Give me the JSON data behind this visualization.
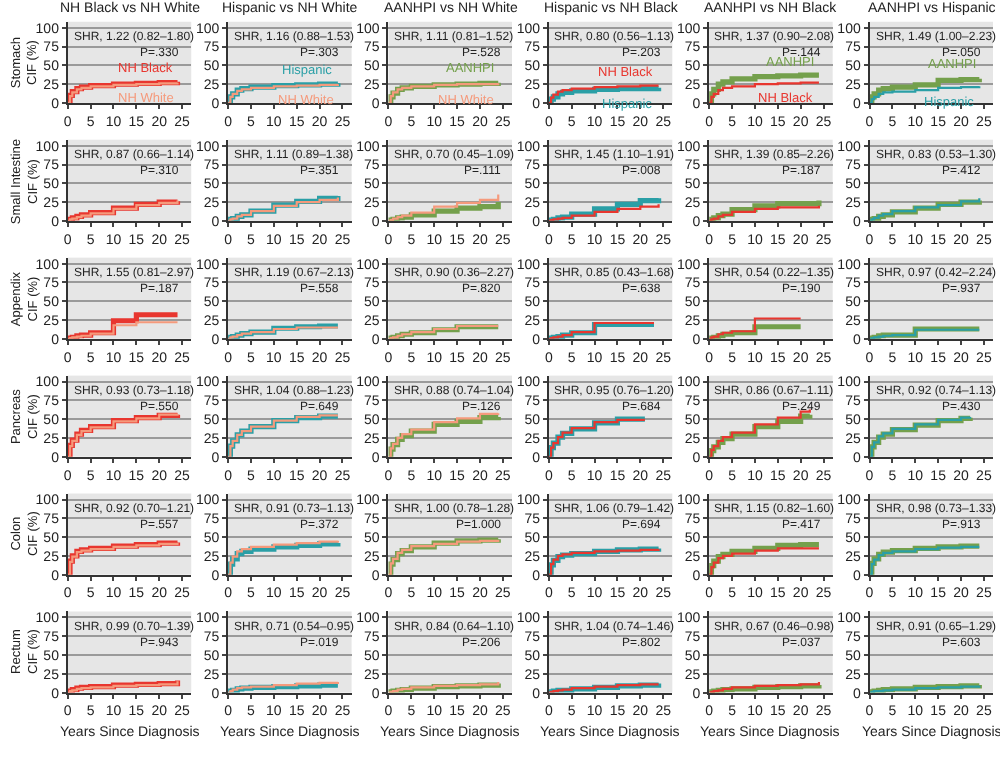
{
  "chart_data": [
    {
      "type": "step",
      "title": "NH Black vs NH White",
      "ylabel": "Stomach\nCIF (%)",
      "x": [
        0,
        0.5,
        1,
        2,
        3,
        5,
        10,
        15,
        20,
        24
      ],
      "xlim": [
        0,
        27
      ],
      "xticks": [
        0,
        5,
        10,
        15,
        20,
        25
      ],
      "ylim": [
        0,
        108
      ],
      "yticks": [
        0,
        25,
        50,
        75,
        100
      ],
      "grid": "y",
      "annotations": [
        "SHR, 1.22 (0.82–1.80)",
        "P=.330"
      ],
      "series": [
        {
          "name": "NH Black",
          "color": "#e8362f",
          "values": [
            0,
            10,
            15,
            19,
            21,
            23,
            25,
            26,
            27,
            28
          ]
        },
        {
          "name": "NH White",
          "color": "#f59a7c",
          "values": [
            0,
            9,
            14,
            18,
            20,
            22,
            24,
            25,
            26,
            27
          ]
        }
      ]
    },
    {
      "type": "step",
      "title": "Hispanic vs NH White",
      "x": [
        0,
        0.5,
        1,
        2,
        3,
        5,
        10,
        15,
        20,
        24
      ],
      "xlim": [
        0,
        27
      ],
      "xticks": [
        0,
        5,
        10,
        15,
        20,
        25
      ],
      "ylim": [
        0,
        108
      ],
      "yticks": [
        0,
        25,
        50,
        75,
        100
      ],
      "grid": "y",
      "annotations": [
        "SHR, 1.16 (0.88–1.53)",
        "P=.303"
      ],
      "series": [
        {
          "name": "Hispanic",
          "color": "#2a9fa6",
          "values": [
            0,
            8,
            12,
            17,
            19,
            21,
            23,
            24,
            25,
            26
          ]
        },
        {
          "name": "NH White",
          "color": "#f59a7c",
          "values": [
            0,
            8,
            12,
            16,
            18,
            20,
            22,
            23,
            24,
            25
          ]
        }
      ]
    },
    {
      "type": "step",
      "title": "AANHPI vs NH White",
      "x": [
        0,
        0.5,
        1,
        2,
        3,
        5,
        10,
        15,
        20,
        24
      ],
      "xlim": [
        0,
        27
      ],
      "xticks": [
        0,
        5,
        10,
        15,
        20,
        25
      ],
      "ylim": [
        0,
        108
      ],
      "yticks": [
        0,
        25,
        50,
        75,
        100
      ],
      "grid": "y",
      "annotations": [
        "SHR, 1.11 (0.81–1.52)",
        "P=.528"
      ],
      "series": [
        {
          "name": "AANHPI",
          "color": "#74a04c",
          "values": [
            0,
            8,
            13,
            18,
            20,
            22,
            24,
            25,
            26,
            27
          ]
        },
        {
          "name": "NH White",
          "color": "#f59a7c",
          "values": [
            0,
            9,
            14,
            18,
            20,
            22,
            24,
            25,
            25,
            26
          ]
        }
      ]
    },
    {
      "type": "step",
      "title": "Hispanic vs NH Black",
      "x": [
        0,
        0.5,
        1,
        2,
        3,
        5,
        10,
        15,
        20,
        24
      ],
      "xlim": [
        0,
        27
      ],
      "xticks": [
        0,
        5,
        10,
        15,
        20,
        25
      ],
      "ylim": [
        0,
        108
      ],
      "yticks": [
        0,
        25,
        50,
        75,
        100
      ],
      "grid": "y",
      "annotations": [
        "SHR, 0.80 (0.56–1.13)",
        "P=.203"
      ],
      "series": [
        {
          "name": "Hispanic",
          "color": "#2a9fa6",
          "values": [
            0,
            5,
            8,
            12,
            14,
            16,
            18,
            19,
            19,
            20
          ]
        },
        {
          "name": "NH Black",
          "color": "#e8362f",
          "values": [
            0,
            7,
            11,
            15,
            17,
            19,
            21,
            22,
            23,
            23
          ]
        }
      ]
    },
    {
      "type": "step",
      "title": "AANHPI vs NH Black",
      "x": [
        0,
        0.5,
        1,
        2,
        3,
        5,
        10,
        15,
        20,
        24
      ],
      "xlim": [
        0,
        27
      ],
      "xticks": [
        0,
        5,
        10,
        15,
        20,
        25
      ],
      "ylim": [
        0,
        108
      ],
      "yticks": [
        0,
        25,
        50,
        75,
        100
      ],
      "grid": "y",
      "annotations": [
        "SHR, 1.37 (0.90–2.08)",
        "P=.144"
      ],
      "series": [
        {
          "name": "AANHPI",
          "color": "#74a04c",
          "values": [
            0,
            12,
            18,
            25,
            28,
            32,
            35,
            36,
            37,
            37
          ]
        },
        {
          "name": "NH Black",
          "color": "#e8362f",
          "values": [
            0,
            8,
            12,
            17,
            20,
            22,
            25,
            26,
            27,
            27
          ]
        }
      ]
    },
    {
      "type": "step",
      "title": "AANHPI vs Hispanic",
      "x": [
        0,
        0.5,
        1,
        2,
        3,
        5,
        10,
        15,
        20,
        24
      ],
      "xlim": [
        0,
        27
      ],
      "xticks": [
        0,
        5,
        10,
        15,
        20,
        25
      ],
      "ylim": [
        0,
        108
      ],
      "yticks": [
        0,
        25,
        50,
        75,
        100
      ],
      "grid": "y",
      "annotations": [
        "SHR, 1.49 (1.00–2.23)",
        "P=.050"
      ],
      "series": [
        {
          "name": "AANHPI",
          "color": "#74a04c",
          "values": [
            0,
            8,
            12,
            17,
            19,
            21,
            24,
            30,
            31,
            32
          ]
        },
        {
          "name": "Hispanic",
          "color": "#2a9fa6",
          "values": [
            0,
            5,
            8,
            12,
            14,
            15,
            17,
            20,
            21,
            22
          ]
        }
      ]
    },
    {
      "type": "step",
      "ylabel": "Small Intestine\nCIF (%)",
      "x": [
        0,
        0.5,
        1,
        2,
        3,
        5,
        10,
        15,
        20,
        24
      ],
      "xlim": [
        0,
        27
      ],
      "xticks": [
        0,
        5,
        10,
        15,
        20,
        25
      ],
      "ylim": [
        0,
        108
      ],
      "yticks": [
        0,
        25,
        50,
        75,
        100
      ],
      "grid": "y",
      "annotations": [
        "SHR, 0.87 (0.66–1.14)",
        "P=.310"
      ],
      "series": [
        {
          "color": "#e8362f",
          "values": [
            0,
            2,
            4,
            6,
            8,
            11,
            17,
            22,
            25,
            26
          ]
        },
        {
          "color": "#f59a7c",
          "values": [
            0,
            2,
            3,
            5,
            7,
            10,
            16,
            21,
            24,
            27
          ]
        }
      ]
    },
    {
      "type": "step",
      "x": [
        0,
        0.5,
        1,
        2,
        3,
        5,
        10,
        15,
        20,
        24
      ],
      "xlim": [
        0,
        27
      ],
      "xticks": [
        0,
        5,
        10,
        15,
        20,
        25
      ],
      "ylim": [
        0,
        108
      ],
      "yticks": [
        0,
        25,
        50,
        75,
        100
      ],
      "grid": "y",
      "annotations": [
        "SHR, 1.11 (0.89–1.38)",
        "P=.351"
      ],
      "series": [
        {
          "color": "#2a9fa6",
          "values": [
            0,
            2,
            3,
            6,
            8,
            13,
            21,
            26,
            30,
            33
          ]
        },
        {
          "color": "#f59a7c",
          "values": [
            0,
            2,
            3,
            6,
            8,
            13,
            20,
            25,
            28,
            31
          ]
        }
      ]
    },
    {
      "type": "step",
      "x": [
        0,
        0.5,
        1,
        2,
        3,
        5,
        10,
        15,
        20,
        24
      ],
      "xlim": [
        0,
        27
      ],
      "xticks": [
        0,
        5,
        10,
        15,
        20,
        25
      ],
      "ylim": [
        0,
        108
      ],
      "yticks": [
        0,
        25,
        50,
        75,
        100
      ],
      "grid": "y",
      "annotations": [
        "SHR, 0.70 (0.45–1.09)",
        "P=.111"
      ],
      "series": [
        {
          "color": "#74a04c",
          "values": [
            0,
            1,
            2,
            4,
            5,
            8,
            13,
            17,
            19,
            25
          ]
        },
        {
          "color": "#f59a7c",
          "values": [
            0,
            1,
            3,
            5,
            7,
            11,
            19,
            24,
            28,
            35
          ]
        }
      ]
    },
    {
      "type": "step",
      "x": [
        0,
        0.5,
        1,
        2,
        3,
        5,
        10,
        15,
        20,
        24
      ],
      "xlim": [
        0,
        27
      ],
      "xticks": [
        0,
        5,
        10,
        15,
        20,
        25
      ],
      "ylim": [
        0,
        108
      ],
      "yticks": [
        0,
        25,
        50,
        75,
        100
      ],
      "grid": "y",
      "annotations": [
        "SHR, 1.45 (1.10–1.91)",
        "P=.008"
      ],
      "series": [
        {
          "color": "#2a9fa6",
          "values": [
            0,
            1,
            2,
            4,
            5,
            9,
            16,
            22,
            27,
            30
          ]
        },
        {
          "color": "#e8362f",
          "values": [
            0,
            1,
            2,
            3,
            4,
            7,
            12,
            16,
            19,
            22
          ]
        }
      ]
    },
    {
      "type": "step",
      "x": [
        0,
        0.5,
        1,
        2,
        3,
        5,
        10,
        15,
        20,
        24
      ],
      "xlim": [
        0,
        27
      ],
      "xticks": [
        0,
        5,
        10,
        15,
        20,
        25
      ],
      "ylim": [
        0,
        108
      ],
      "yticks": [
        0,
        25,
        50,
        75,
        100
      ],
      "grid": "y",
      "annotations": [
        "SHR, 1.39 (0.85–2.26)",
        "P=.187"
      ],
      "series": [
        {
          "color": "#74a04c",
          "values": [
            0,
            2,
            4,
            7,
            9,
            15,
            20,
            23,
            23,
            27
          ]
        },
        {
          "color": "#e8362f",
          "values": [
            0,
            2,
            3,
            6,
            8,
            12,
            16,
            18,
            18,
            20
          ]
        }
      ]
    },
    {
      "type": "step",
      "x": [
        0,
        0.5,
        1,
        2,
        3,
        5,
        10,
        15,
        20,
        24
      ],
      "xlim": [
        0,
        27
      ],
      "xticks": [
        0,
        5,
        10,
        15,
        20,
        25
      ],
      "ylim": [
        0,
        108
      ],
      "yticks": [
        0,
        25,
        50,
        75,
        100
      ],
      "grid": "y",
      "annotations": [
        "SHR, 0.83 (0.53–1.30)",
        "P=.412"
      ],
      "series": [
        {
          "color": "#74a04c",
          "values": [
            0,
            2,
            3,
            6,
            8,
            12,
            17,
            22,
            25,
            27
          ]
        },
        {
          "color": "#2a9fa6",
          "values": [
            0,
            2,
            4,
            7,
            9,
            13,
            18,
            21,
            26,
            30
          ]
        }
      ]
    },
    {
      "type": "step",
      "ylabel": "Appendix\nCIF (%)",
      "x": [
        0,
        0.5,
        1,
        2,
        3,
        5,
        10,
        15,
        20,
        24
      ],
      "xlim": [
        0,
        27
      ],
      "xticks": [
        0,
        5,
        10,
        15,
        20,
        25
      ],
      "ylim": [
        0,
        108
      ],
      "yticks": [
        0,
        25,
        50,
        75,
        100
      ],
      "grid": "y",
      "annotations": [
        "SHR, 1.55 (0.81–2.97)",
        "P=.187"
      ],
      "series": [
        {
          "color": "#e8362f",
          "values": [
            0,
            1,
            2,
            4,
            5,
            8,
            24,
            32,
            32,
            32
          ]
        },
        {
          "color": "#f59a7c",
          "values": [
            0,
            1,
            2,
            3,
            4,
            7,
            18,
            22,
            22,
            22
          ]
        }
      ]
    },
    {
      "type": "step",
      "x": [
        0,
        0.5,
        1,
        2,
        3,
        5,
        10,
        15,
        20,
        24
      ],
      "xlim": [
        0,
        27
      ],
      "xticks": [
        0,
        5,
        10,
        15,
        20,
        25
      ],
      "ylim": [
        0,
        108
      ],
      "yticks": [
        0,
        25,
        50,
        75,
        100
      ],
      "grid": "y",
      "annotations": [
        "SHR, 1.19 (0.67–2.13)",
        "P=.558"
      ],
      "series": [
        {
          "color": "#2a9fa6",
          "values": [
            0,
            2,
            3,
            5,
            7,
            9,
            14,
            16,
            17,
            17
          ]
        },
        {
          "color": "#f59a7c",
          "values": [
            0,
            2,
            3,
            5,
            7,
            9,
            13,
            15,
            15,
            15
          ]
        }
      ]
    },
    {
      "type": "step",
      "x": [
        0,
        0.5,
        1,
        2,
        3,
        5,
        10,
        15,
        20,
        24
      ],
      "xlim": [
        0,
        27
      ],
      "xticks": [
        0,
        5,
        10,
        15,
        20,
        25
      ],
      "ylim": [
        0,
        108
      ],
      "yticks": [
        0,
        25,
        50,
        75,
        100
      ],
      "grid": "y",
      "annotations": [
        "SHR, 0.90 (0.36–2.27)",
        "P=.820"
      ],
      "series": [
        {
          "color": "#74a04c",
          "values": [
            0,
            1,
            2,
            4,
            6,
            8,
            12,
            16,
            16,
            16
          ]
        },
        {
          "color": "#f59a7c",
          "values": [
            0,
            1,
            2,
            4,
            6,
            9,
            13,
            17,
            17,
            17
          ]
        }
      ]
    },
    {
      "type": "step",
      "x": [
        0,
        0.5,
        1,
        2,
        3,
        5,
        10,
        15,
        20,
        23
      ],
      "xlim": [
        0,
        27
      ],
      "xticks": [
        0,
        5,
        10,
        15,
        20,
        25
      ],
      "ylim": [
        0,
        108
      ],
      "yticks": [
        0,
        25,
        50,
        75,
        100
      ],
      "grid": "y",
      "annotations": [
        "SHR, 0.85 (0.43–1.68)",
        "P=.638"
      ],
      "series": [
        {
          "color": "#2a9fa6",
          "values": [
            0,
            1,
            2,
            3,
            5,
            8,
            19,
            19,
            19,
            19
          ]
        },
        {
          "color": "#e8362f",
          "values": [
            0,
            1,
            2,
            3,
            5,
            9,
            21,
            21,
            21,
            21
          ]
        }
      ]
    },
    {
      "type": "step",
      "x": [
        0,
        0.5,
        1,
        2,
        3,
        5,
        10,
        15,
        20
      ],
      "xlim": [
        0,
        27
      ],
      "xticks": [
        0,
        5,
        10,
        15,
        20,
        25
      ],
      "ylim": [
        0,
        108
      ],
      "yticks": [
        0,
        25,
        50,
        75,
        100
      ],
      "grid": "y",
      "annotations": [
        "SHR, 0.54 (0.22–1.35)",
        "P=.190"
      ],
      "series": [
        {
          "color": "#74a04c",
          "values": [
            0,
            1,
            2,
            4,
            6,
            8,
            16,
            16,
            16
          ]
        },
        {
          "color": "#e8362f",
          "values": [
            0,
            2,
            3,
            6,
            8,
            10,
            27,
            27,
            27
          ]
        }
      ]
    },
    {
      "type": "step",
      "x": [
        0,
        0.5,
        1,
        2,
        3,
        5,
        10,
        15,
        20,
        24
      ],
      "xlim": [
        0,
        27
      ],
      "xticks": [
        0,
        5,
        10,
        15,
        20,
        25
      ],
      "ylim": [
        0,
        108
      ],
      "yticks": [
        0,
        25,
        50,
        75,
        100
      ],
      "grid": "y",
      "annotations": [
        "SHR, 0.97 (0.42–2.24)",
        "P=.937"
      ],
      "series": [
        {
          "color": "#74a04c",
          "values": [
            0,
            1,
            2,
            4,
            5,
            5,
            13,
            13,
            13,
            13
          ]
        },
        {
          "color": "#2a9fa6",
          "values": [
            0,
            1,
            2,
            3,
            4,
            5,
            12,
            12,
            12,
            12
          ]
        }
      ]
    },
    {
      "type": "step",
      "ylabel": "Pancreas\nCIF (%)",
      "x": [
        0,
        0.5,
        1,
        2,
        3,
        5,
        10,
        15,
        20,
        24
      ],
      "xlim": [
        0,
        27
      ],
      "xticks": [
        0,
        5,
        10,
        15,
        20,
        25
      ],
      "ylim": [
        0,
        108
      ],
      "yticks": [
        0,
        25,
        50,
        75,
        100
      ],
      "grid": "y",
      "annotations": [
        "SHR, 0.93 (0.73–1.18)",
        "P=.550"
      ],
      "series": [
        {
          "color": "#e8362f",
          "values": [
            0,
            15,
            22,
            30,
            35,
            40,
            48,
            52,
            55,
            56
          ]
        },
        {
          "color": "#f59a7c",
          "values": [
            0,
            14,
            21,
            29,
            34,
            39,
            47,
            51,
            56,
            57
          ]
        }
      ]
    },
    {
      "type": "step",
      "x": [
        0,
        0.5,
        1,
        2,
        3,
        5,
        10,
        15,
        20,
        24
      ],
      "xlim": [
        0,
        27
      ],
      "xticks": [
        0,
        5,
        10,
        15,
        20,
        25
      ],
      "ylim": [
        0,
        108
      ],
      "yticks": [
        0,
        25,
        50,
        75,
        100
      ],
      "grid": "y",
      "annotations": [
        "SHR, 1.04 (0.88–1.23)",
        "P=.649"
      ],
      "series": [
        {
          "color": "#2a9fa6",
          "values": [
            0,
            14,
            21,
            29,
            34,
            40,
            48,
            52,
            54,
            54
          ]
        },
        {
          "color": "#f59a7c",
          "values": [
            0,
            14,
            21,
            29,
            34,
            40,
            48,
            53,
            55,
            55
          ]
        }
      ]
    },
    {
      "type": "step",
      "x": [
        0,
        0.5,
        1,
        2,
        3,
        5,
        10,
        15,
        20,
        24
      ],
      "xlim": [
        0,
        27
      ],
      "xticks": [
        0,
        5,
        10,
        15,
        20,
        25
      ],
      "ylim": [
        0,
        108
      ],
      "yticks": [
        0,
        25,
        50,
        75,
        100
      ],
      "grid": "y",
      "annotations": [
        "SHR, 0.88 (0.74–1.04)",
        "P=.126"
      ],
      "series": [
        {
          "color": "#74a04c",
          "values": [
            0,
            10,
            16,
            23,
            28,
            34,
            43,
            47,
            52,
            53
          ]
        },
        {
          "color": "#f59a7c",
          "values": [
            0,
            11,
            17,
            25,
            30,
            36,
            46,
            51,
            57,
            58
          ]
        }
      ]
    },
    {
      "type": "step",
      "x": [
        0,
        0.5,
        1,
        2,
        3,
        5,
        10,
        15,
        20,
        21
      ],
      "xlim": [
        0,
        27
      ],
      "xticks": [
        0,
        5,
        10,
        15,
        20,
        25
      ],
      "ylim": [
        0,
        108
      ],
      "yticks": [
        0,
        25,
        50,
        75,
        100
      ],
      "grid": "y",
      "annotations": [
        "SHR, 0.95 (0.76–1.20)",
        "P=.684"
      ],
      "series": [
        {
          "color": "#2a9fa6",
          "values": [
            0,
            12,
            18,
            26,
            31,
            37,
            45,
            50,
            50,
            50
          ]
        },
        {
          "color": "#e8362f",
          "values": [
            0,
            12,
            18,
            26,
            32,
            38,
            46,
            49,
            49,
            49
          ]
        }
      ]
    },
    {
      "type": "step",
      "x": [
        0,
        0.5,
        1,
        2,
        3,
        5,
        10,
        15,
        20,
        22
      ],
      "xlim": [
        0,
        27
      ],
      "xticks": [
        0,
        5,
        10,
        15,
        20,
        25
      ],
      "ylim": [
        0,
        108
      ],
      "yticks": [
        0,
        25,
        50,
        75,
        100
      ],
      "grid": "y",
      "annotations": [
        "SHR, 0.86 (0.67–1.11)",
        "P=.249"
      ],
      "series": [
        {
          "color": "#74a04c",
          "values": [
            0,
            8,
            13,
            19,
            24,
            30,
            40,
            47,
            54,
            56
          ]
        },
        {
          "color": "#e8362f",
          "values": [
            0,
            9,
            14,
            21,
            26,
            32,
            43,
            52,
            60,
            63
          ]
        }
      ]
    },
    {
      "type": "step",
      "x": [
        0,
        0.5,
        1,
        2,
        3,
        5,
        10,
        15,
        20,
        22
      ],
      "xlim": [
        0,
        27
      ],
      "xticks": [
        0,
        5,
        10,
        15,
        20,
        25
      ],
      "ylim": [
        0,
        108
      ],
      "yticks": [
        0,
        25,
        50,
        75,
        100
      ],
      "grid": "y",
      "annotations": [
        "SHR, 0.92 (0.74–1.13)",
        "P=.430"
      ],
      "series": [
        {
          "color": "#74a04c",
          "values": [
            0,
            13,
            19,
            26,
            30,
            36,
            42,
            48,
            51,
            52
          ]
        },
        {
          "color": "#2a9fa6",
          "values": [
            0,
            13,
            19,
            27,
            31,
            37,
            43,
            49,
            52,
            53
          ]
        }
      ]
    },
    {
      "type": "step",
      "ylabel": "Colon\nCIF (%)",
      "x": [
        0,
        0.5,
        1,
        2,
        3,
        5,
        10,
        15,
        20,
        24
      ],
      "xlim": [
        0,
        27
      ],
      "xticks": [
        0,
        5,
        10,
        15,
        20,
        25
      ],
      "ylim": [
        0,
        108
      ],
      "yticks": [
        0,
        25,
        50,
        75,
        100
      ],
      "grid": "y",
      "annotations": [
        "SHR, 0.92 (0.70–1.21)",
        "P=.557"
      ],
      "series": [
        {
          "color": "#e8362f",
          "values": [
            0,
            18,
            25,
            31,
            33,
            35,
            38,
            40,
            42,
            43
          ]
        },
        {
          "color": "#f59a7c",
          "values": [
            0,
            17,
            24,
            30,
            32,
            34,
            37,
            39,
            41,
            42
          ]
        }
      ]
    },
    {
      "type": "step",
      "x": [
        0,
        0.5,
        1,
        2,
        3,
        5,
        10,
        15,
        20,
        24
      ],
      "xlim": [
        0,
        27
      ],
      "xticks": [
        0,
        5,
        10,
        15,
        20,
        25
      ],
      "ylim": [
        0,
        108
      ],
      "yticks": [
        0,
        25,
        50,
        75,
        100
      ],
      "grid": "y",
      "annotations": [
        "SHR, 0.91 (0.73–1.13)",
        "P=.372"
      ],
      "series": [
        {
          "color": "#2a9fa6",
          "values": [
            0,
            14,
            21,
            28,
            31,
            34,
            37,
            39,
            41,
            42
          ]
        },
        {
          "color": "#f59a7c",
          "values": [
            0,
            16,
            24,
            31,
            34,
            37,
            40,
            42,
            44,
            45
          ]
        }
      ]
    },
    {
      "type": "step",
      "x": [
        0,
        0.5,
        1,
        2,
        3,
        5,
        10,
        15,
        20,
        24
      ],
      "xlim": [
        0,
        27
      ],
      "xticks": [
        0,
        5,
        10,
        15,
        20,
        25
      ],
      "ylim": [
        0,
        108
      ],
      "yticks": [
        0,
        25,
        50,
        75,
        100
      ],
      "grid": "y",
      "annotations": [
        "SHR, 1.00 (0.78–1.28)",
        "P=1.000"
      ],
      "series": [
        {
          "color": "#74a04c",
          "values": [
            0,
            14,
            20,
            28,
            32,
            37,
            42,
            45,
            46,
            47
          ]
        },
        {
          "color": "#f59a7c",
          "values": [
            0,
            15,
            21,
            29,
            33,
            38,
            41,
            44,
            45,
            46
          ]
        }
      ]
    },
    {
      "type": "step",
      "x": [
        0,
        0.5,
        1,
        2,
        3,
        5,
        10,
        15,
        20,
        24
      ],
      "xlim": [
        0,
        27
      ],
      "xticks": [
        0,
        5,
        10,
        15,
        20,
        25
      ],
      "ylim": [
        0,
        108
      ],
      "yticks": [
        0,
        25,
        50,
        75,
        100
      ],
      "grid": "y",
      "annotations": [
        "SHR, 1.06 (0.79–1.42)",
        "P=.694"
      ],
      "series": [
        {
          "color": "#2a9fa6",
          "values": [
            0,
            13,
            19,
            24,
            26,
            28,
            31,
            33,
            34,
            35
          ]
        },
        {
          "color": "#e8362f",
          "values": [
            0,
            14,
            20,
            25,
            27,
            29,
            31,
            32,
            33,
            34
          ]
        }
      ]
    },
    {
      "type": "step",
      "x": [
        0,
        0.5,
        1,
        2,
        3,
        5,
        10,
        15,
        20,
        24
      ],
      "xlim": [
        0,
        27
      ],
      "xticks": [
        0,
        5,
        10,
        15,
        20,
        25
      ],
      "ylim": [
        0,
        108
      ],
      "yticks": [
        0,
        25,
        50,
        75,
        100
      ],
      "grid": "y",
      "annotations": [
        "SHR, 1.15 (0.82–1.60)",
        "P=.417"
      ],
      "series": [
        {
          "color": "#74a04c",
          "values": [
            0,
            12,
            18,
            24,
            27,
            31,
            35,
            39,
            40,
            40
          ]
        },
        {
          "color": "#e8362f",
          "values": [
            0,
            10,
            16,
            22,
            25,
            28,
            32,
            35,
            35,
            35
          ]
        }
      ]
    },
    {
      "type": "step",
      "x": [
        0,
        0.5,
        1,
        2,
        3,
        5,
        10,
        15,
        20,
        24
      ],
      "xlim": [
        0,
        27
      ],
      "xticks": [
        0,
        5,
        10,
        15,
        20,
        25
      ],
      "ylim": [
        0,
        108
      ],
      "yticks": [
        0,
        25,
        50,
        75,
        100
      ],
      "grid": "y",
      "annotations": [
        "SHR, 0.98 (0.73–1.33)",
        "P=.913"
      ],
      "series": [
        {
          "color": "#74a04c",
          "values": [
            0,
            15,
            21,
            27,
            30,
            32,
            35,
            37,
            38,
            38
          ]
        },
        {
          "color": "#2a9fa6",
          "values": [
            0,
            14,
            20,
            26,
            29,
            31,
            34,
            36,
            37,
            37
          ]
        }
      ]
    },
    {
      "type": "step",
      "ylabel": "Rectum\nCIF (%)",
      "xlabel": "Years Since Diagnosis",
      "x": [
        0,
        0.5,
        1,
        2,
        3,
        5,
        10,
        15,
        20,
        24
      ],
      "xlim": [
        0,
        27
      ],
      "xticks": [
        0,
        5,
        10,
        15,
        20,
        25
      ],
      "ylim": [
        0,
        108
      ],
      "yticks": [
        0,
        25,
        50,
        75,
        100
      ],
      "grid": "y",
      "annotations": [
        "SHR, 0.99 (0.70–1.39)",
        "P=.943"
      ],
      "series": [
        {
          "color": "#e8362f",
          "values": [
            0,
            2,
            4,
            6,
            7,
            8,
            10,
            11,
            12,
            16
          ]
        },
        {
          "color": "#f59a7c",
          "values": [
            0,
            2,
            3,
            5,
            6,
            7,
            9,
            10,
            11,
            15
          ]
        }
      ]
    },
    {
      "type": "step",
      "xlabel": "Years Since Diagnosis",
      "x": [
        0,
        0.5,
        1,
        2,
        3,
        5,
        10,
        15,
        20,
        24
      ],
      "xlim": [
        0,
        27
      ],
      "xticks": [
        0,
        5,
        10,
        15,
        20,
        25
      ],
      "ylim": [
        0,
        108
      ],
      "yticks": [
        0,
        25,
        50,
        75,
        100
      ],
      "grid": "y",
      "annotations": [
        "SHR, 0.71 (0.54–0.95)",
        "P=.019"
      ],
      "series": [
        {
          "color": "#2a9fa6",
          "values": [
            0,
            2,
            3,
            5,
            6,
            7,
            8,
            9,
            10,
            10
          ]
        },
        {
          "color": "#f59a7c",
          "values": [
            0,
            2,
            4,
            6,
            7,
            8,
            10,
            12,
            13,
            14
          ]
        }
      ]
    },
    {
      "type": "step",
      "xlabel": "Years Since Diagnosis",
      "x": [
        0,
        0.5,
        1,
        2,
        3,
        5,
        10,
        15,
        20,
        24
      ],
      "xlim": [
        0,
        27
      ],
      "xticks": [
        0,
        5,
        10,
        15,
        20,
        25
      ],
      "ylim": [
        0,
        108
      ],
      "yticks": [
        0,
        25,
        50,
        75,
        100
      ],
      "grid": "y",
      "annotations": [
        "SHR, 0.84 (0.64–1.10)",
        "P=.206"
      ],
      "series": [
        {
          "color": "#74a04c",
          "values": [
            0,
            1,
            2,
            3,
            4,
            6,
            8,
            9,
            10,
            12
          ]
        },
        {
          "color": "#f59a7c",
          "values": [
            0,
            1,
            2,
            4,
            5,
            7,
            9,
            10,
            11,
            14
          ]
        }
      ]
    },
    {
      "type": "step",
      "xlabel": "Years Since Diagnosis",
      "x": [
        0,
        0.5,
        1,
        2,
        3,
        5,
        10,
        15,
        20,
        24
      ],
      "xlim": [
        0,
        27
      ],
      "xticks": [
        0,
        5,
        10,
        15,
        20,
        25
      ],
      "ylim": [
        0,
        108
      ],
      "yticks": [
        0,
        25,
        50,
        75,
        100
      ],
      "grid": "y",
      "annotations": [
        "SHR, 1.04 (0.74–1.46)",
        "P=.802"
      ],
      "series": [
        {
          "color": "#2a9fa6",
          "values": [
            0,
            1,
            2,
            3,
            3,
            5,
            7,
            9,
            10,
            12
          ]
        },
        {
          "color": "#e8362f",
          "values": [
            0,
            1,
            2,
            3,
            4,
            6,
            8,
            10,
            11,
            11
          ]
        }
      ]
    },
    {
      "type": "step",
      "xlabel": "Years Since Diagnosis",
      "x": [
        0,
        0.5,
        1,
        2,
        3,
        5,
        10,
        15,
        20,
        24
      ],
      "xlim": [
        0,
        27
      ],
      "xticks": [
        0,
        5,
        10,
        15,
        20,
        25
      ],
      "ylim": [
        0,
        108
      ],
      "yticks": [
        0,
        25,
        50,
        75,
        100
      ],
      "grid": "y",
      "annotations": [
        "SHR, 0.67 (0.46–0.98)",
        "P=.037"
      ],
      "series": [
        {
          "color": "#74a04c",
          "values": [
            0,
            1,
            2,
            3,
            4,
            5,
            7,
            8,
            9,
            10
          ]
        },
        {
          "color": "#e8362f",
          "values": [
            0,
            1,
            2,
            3,
            5,
            7,
            9,
            10,
            11,
            14
          ]
        }
      ]
    },
    {
      "type": "step",
      "xlabel": "Years Since Diagnosis",
      "x": [
        0,
        0.5,
        1,
        2,
        3,
        5,
        10,
        15,
        20,
        24
      ],
      "xlim": [
        0,
        27
      ],
      "xticks": [
        0,
        5,
        10,
        15,
        20,
        25
      ],
      "ylim": [
        0,
        108
      ],
      "yticks": [
        0,
        25,
        50,
        75,
        100
      ],
      "grid": "y",
      "annotations": [
        "SHR, 0.91 (0.65–1.29)",
        "P=.603"
      ],
      "series": [
        {
          "color": "#74a04c",
          "values": [
            0,
            1,
            2,
            3,
            4,
            5,
            7,
            8,
            9,
            10
          ]
        },
        {
          "color": "#2a9fa6",
          "values": [
            0,
            1,
            2,
            2,
            3,
            4,
            6,
            7,
            8,
            9
          ]
        }
      ]
    }
  ]
}
